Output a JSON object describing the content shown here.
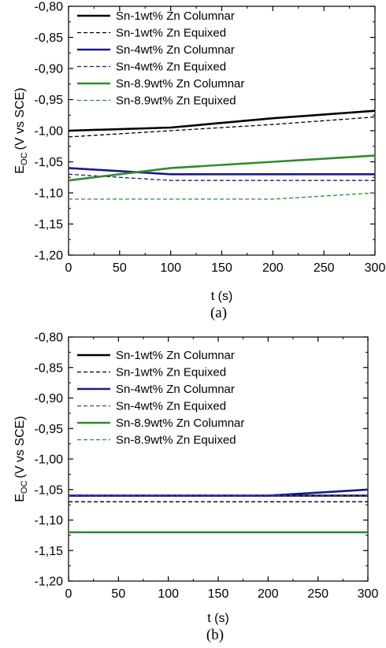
{
  "chart_data": [
    {
      "type": "line",
      "caption": "(a)",
      "xlabel": "t (s)",
      "ylabel": {
        "main": "E",
        "sub": "OC",
        "rest": "(V vs SCE)"
      },
      "xlim": [
        0,
        300
      ],
      "ylim": [
        -1.2,
        -0.8
      ],
      "x_ticks": [
        0,
        50,
        100,
        150,
        200,
        250,
        300
      ],
      "y_ticks": [
        -0.8,
        -0.85,
        -0.9,
        -0.95,
        -1.0,
        -1.05,
        -1.1,
        -1.15,
        -1.2
      ],
      "x_tick_labels": [
        "0",
        "50",
        "100",
        "150",
        "200",
        "250",
        "300"
      ],
      "y_tick_labels": [
        "-0,80",
        "-0,85",
        "-0,90",
        "-0,95",
        "-1,00",
        "-1,05",
        "-1,10",
        "-1,15",
        "-1,20"
      ],
      "legend_position": "top-left",
      "grid": false,
      "series": [
        {
          "name": "Sn-1wt% Zn Columnar",
          "color": "#000000",
          "dash": "solid",
          "x": [
            0,
            100,
            200,
            300
          ],
          "y": [
            -1.0,
            -0.995,
            -0.98,
            -0.968
          ]
        },
        {
          "name": "Sn-1wt% Zn Equixed",
          "color": "#000000",
          "dash": "dashed",
          "x": [
            0,
            100,
            200,
            300
          ],
          "y": [
            -1.01,
            -1.0,
            -0.99,
            -0.978
          ]
        },
        {
          "name": "Sn-4wt% Zn Columnar",
          "color": "#1a1a8c",
          "dash": "solid",
          "x": [
            0,
            100,
            200,
            300
          ],
          "y": [
            -1.06,
            -1.07,
            -1.07,
            -1.07
          ]
        },
        {
          "name": "Sn-4wt% Zn Equixed",
          "color": "#1a1a8c",
          "dash": "dashed",
          "x": [
            0,
            100,
            200,
            300
          ],
          "y": [
            -1.07,
            -1.08,
            -1.08,
            -1.08
          ]
        },
        {
          "name": "Sn-8.9wt% Zn Columnar",
          "color": "#2e8b2e",
          "dash": "solid",
          "x": [
            0,
            100,
            200,
            300
          ],
          "y": [
            -1.08,
            -1.06,
            -1.05,
            -1.04
          ]
        },
        {
          "name": "Sn-8.9wt% Zn Equixed",
          "color": "#2e8b2e",
          "dash": "dashed",
          "x": [
            0,
            100,
            200,
            300
          ],
          "y": [
            -1.11,
            -1.11,
            -1.11,
            -1.1
          ]
        }
      ]
    },
    {
      "type": "line",
      "caption": "(b)",
      "xlabel": "t (s)",
      "ylabel": {
        "main": "E",
        "sub": "OC",
        "rest": "(V vs SCE)"
      },
      "xlim": [
        0,
        300
      ],
      "ylim": [
        -1.2,
        -0.8
      ],
      "x_ticks": [
        0,
        50,
        100,
        150,
        200,
        250,
        300
      ],
      "y_ticks": [
        -0.8,
        -0.85,
        -0.9,
        -0.95,
        -1.0,
        -1.05,
        -1.1,
        -1.15,
        -1.2
      ],
      "x_tick_labels": [
        "0",
        "50",
        "100",
        "150",
        "200",
        "250",
        "300"
      ],
      "y_tick_labels": [
        "-0,80",
        "-0,85",
        "-0,90",
        "-0,95",
        "-1,00",
        "-1,05",
        "-1,10",
        "-1,15",
        "-1,20"
      ],
      "legend_position": "top-left",
      "grid": false,
      "series": [
        {
          "name": "Sn-1wt% Zn Columnar",
          "color": "#000000",
          "dash": "solid",
          "x": [
            0,
            300
          ],
          "y": [
            -1.06,
            -1.06
          ]
        },
        {
          "name": "Sn-1wt% Zn Equixed",
          "color": "#000000",
          "dash": "dashed",
          "x": [
            0,
            300
          ],
          "y": [
            -1.07,
            -1.07
          ]
        },
        {
          "name": "Sn-4wt% Zn Columnar",
          "color": "#1a1a8c",
          "dash": "solid",
          "x": [
            0,
            200,
            300
          ],
          "y": [
            -1.06,
            -1.06,
            -1.05
          ]
        },
        {
          "name": "Sn-4wt% Zn Equixed",
          "color": "#3a3acc",
          "dash": "dashed",
          "x": [
            0,
            300
          ],
          "y": [
            -1.06,
            -1.06
          ]
        },
        {
          "name": "Sn-8.9wt% Zn Columnar",
          "color": "#2e8b2e",
          "dash": "solid",
          "x": [
            0,
            300
          ],
          "y": [
            -1.12,
            -1.12
          ]
        },
        {
          "name": "Sn-8.9wt% Zn Equixed",
          "color": "#2e8b2e",
          "dash": "dashed",
          "x": [
            0,
            300
          ],
          "y": [
            -1.12,
            -1.12
          ]
        }
      ]
    }
  ]
}
